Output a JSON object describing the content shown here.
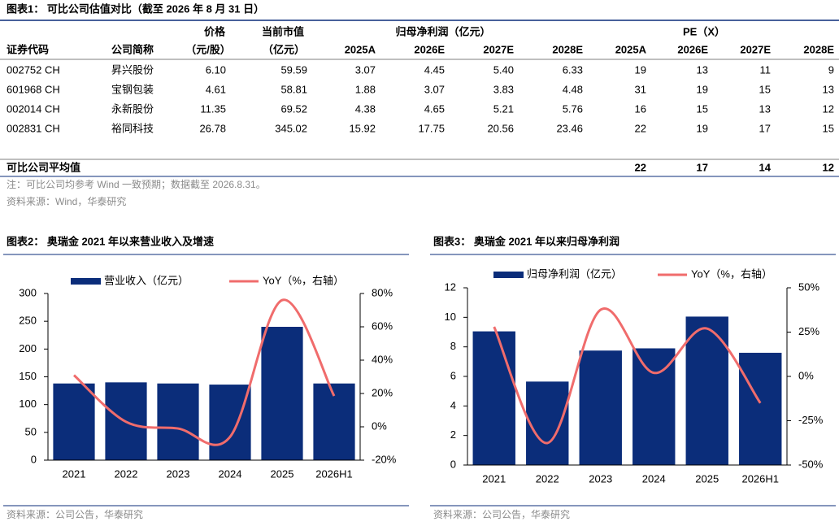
{
  "table": {
    "title": "图表1： 可比公司估值对比（截至 2026 年 8 月 31 日）",
    "header_top": [
      "价格",
      "当前市值",
      "归母净利润（亿元）",
      "PE（X）"
    ],
    "header": [
      "证券代码",
      "公司简称",
      "（元/股）",
      "（亿元）",
      "2025A",
      "2026E",
      "2027E",
      "2028E",
      "2025A",
      "2026E",
      "2027E",
      "2028E"
    ],
    "rows": [
      [
        "002752 CH",
        "昇兴股份",
        "6.10",
        "59.59",
        "3.07",
        "4.45",
        "5.40",
        "6.33",
        "19",
        "13",
        "11",
        "9"
      ],
      [
        "601968 CH",
        "宝钢包装",
        "4.61",
        "58.81",
        "1.88",
        "3.07",
        "3.83",
        "4.48",
        "31",
        "19",
        "15",
        "13"
      ],
      [
        "002014 CH",
        "永新股份",
        "11.35",
        "69.52",
        "4.38",
        "4.65",
        "5.21",
        "5.76",
        "16",
        "15",
        "13",
        "12"
      ],
      [
        "002831 CH",
        "裕同科技",
        "26.78",
        "345.02",
        "15.92",
        "17.75",
        "20.56",
        "23.46",
        "22",
        "19",
        "17",
        "15"
      ]
    ],
    "average": {
      "label": "可比公司平均值",
      "values": [
        "22",
        "17",
        "14",
        "12"
      ]
    },
    "note": "注：可比公司均参考 Wind 一致预期；数据截至 2026.8.31。",
    "source": "资料来源：Wind，华泰研究"
  },
  "chart_data": [
    {
      "type": "bar-line",
      "title": "图表2： 奥瑞金 2021 年以来营业收入及增速",
      "categories": [
        "2021",
        "2022",
        "2023",
        "2024",
        "2025",
        "2026H1"
      ],
      "series": [
        {
          "name": "营业收入（亿元）",
          "type": "bar",
          "color": "#0b2d7a",
          "values": [
            138,
            140,
            138,
            136,
            240,
            138
          ]
        },
        {
          "name": "YoY（%，右轴）",
          "type": "line",
          "axis": "y2",
          "color": "#f06c6c",
          "values": [
            31,
            3,
            -1,
            -6,
            76,
            18.5
          ]
        }
      ],
      "ylim": [
        0,
        300
      ],
      "yticks": [
        0,
        50,
        100,
        150,
        200,
        250,
        300
      ],
      "y2lim": [
        -20,
        80
      ],
      "y2ticks": [
        {
          "value": -20,
          "label": "-20%"
        },
        {
          "value": 0,
          "label": "0%"
        },
        {
          "value": 20,
          "label": "20%"
        },
        {
          "value": 40,
          "label": "40%"
        },
        {
          "value": 60,
          "label": "60%"
        },
        {
          "value": 80,
          "label": "80%"
        }
      ],
      "source": "资料来源：公司公告，华泰研究"
    },
    {
      "type": "bar-line",
      "title": "图表3： 奥瑞金 2021 年以来归母净利润",
      "categories": [
        "2021",
        "2022",
        "2023",
        "2024",
        "2025",
        "2026H1"
      ],
      "series": [
        {
          "name": "归母净利润（亿元）",
          "type": "bar",
          "color": "#0b2d7a",
          "values": [
            9.05,
            5.65,
            7.75,
            7.9,
            10.05,
            7.6
          ]
        },
        {
          "name": "YoY（%，右轴）",
          "type": "line",
          "axis": "y2",
          "color": "#f06c6c",
          "values": [
            28,
            -37.6,
            37.6,
            2,
            27,
            -15
          ]
        }
      ],
      "ylim": [
        0,
        12
      ],
      "yticks": [
        0,
        2,
        4,
        6,
        8,
        10,
        12
      ],
      "y2lim": [
        -50,
        50
      ],
      "y2ticks": [
        {
          "value": -50,
          "label": "-50%"
        },
        {
          "value": -25,
          "label": "-25%"
        },
        {
          "value": 0,
          "label": "0%"
        },
        {
          "value": 25,
          "label": "25%"
        },
        {
          "value": 50,
          "label": "50%"
        }
      ],
      "source": "资料来源：公司公告，华泰研究"
    }
  ]
}
